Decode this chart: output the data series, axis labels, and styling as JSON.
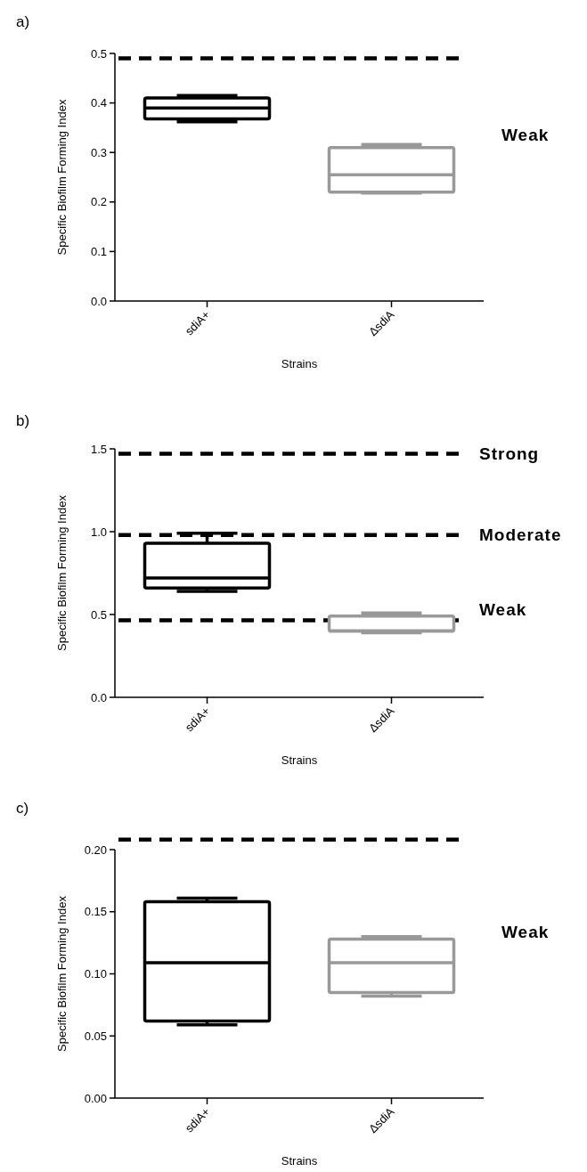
{
  "chart_data": [
    {
      "type": "box",
      "title": "a)",
      "xlabel": "Strains",
      "ylabel": "Specific Biofilm Forming Index",
      "categories": [
        "sdiA+",
        "ΔsdiA"
      ],
      "colors": [
        "#000000",
        "#999999"
      ],
      "boxes": [
        {
          "low": 0.362,
          "q1": 0.368,
          "median": 0.39,
          "q3": 0.41,
          "high": 0.415
        },
        {
          "low": 0.218,
          "q1": 0.22,
          "median": 0.255,
          "q3": 0.31,
          "high": 0.316
        }
      ],
      "ylim": [
        0,
        0.5
      ],
      "yticks": [
        {
          "value": 0,
          "label": "0.0"
        },
        0.1,
        0.2,
        0.3,
        0.4,
        0.5
      ],
      "ref_lines": [
        {
          "axis": "y",
          "value": 0.49,
          "label": null,
          "color": "#000000",
          "line_style": "dashed"
        }
      ],
      "annotations": [
        "Weak"
      ]
    },
    {
      "type": "box",
      "title": "b)",
      "xlabel": "Strains",
      "ylabel": "Specific Biofilm Forming Index",
      "categories": [
        "sdiA+",
        "ΔsdiA"
      ],
      "colors": [
        "#000000",
        "#999999"
      ],
      "boxes": [
        {
          "low": 0.64,
          "q1": 0.66,
          "median": 0.72,
          "q3": 0.93,
          "high": 0.99
        },
        {
          "low": 0.39,
          "q1": 0.4,
          "median": 0.4,
          "q3": 0.49,
          "high": 0.51
        }
      ],
      "ylim": [
        0,
        1.5
      ],
      "yticks": [
        {
          "value": 0,
          "label": "0.0"
        },
        0.5,
        {
          "value": 1,
          "label": "1.0"
        },
        1.5
      ],
      "ref_lines": [
        {
          "axis": "y",
          "value": 1.47,
          "label": "Strong",
          "color": "#000000",
          "line_style": "dashed"
        },
        {
          "axis": "y",
          "value": 0.98,
          "label": "Moderate",
          "color": "#000000",
          "line_style": "dashed"
        },
        {
          "axis": "y",
          "value": 0.465,
          "label": "Weak",
          "color": "#000000",
          "line_style": "dashed"
        }
      ]
    },
    {
      "type": "box",
      "title": "c)",
      "xlabel": "Strains",
      "ylabel": "Specific Biofilm Forming Index",
      "categories": [
        "sdiA+",
        "ΔsdiA"
      ],
      "colors": [
        "#000000",
        "#999999"
      ],
      "boxes": [
        {
          "low": 0.059,
          "q1": 0.062,
          "median": 0.109,
          "q3": 0.158,
          "high": 0.161
        },
        {
          "low": 0.082,
          "q1": 0.085,
          "median": 0.109,
          "q3": 0.128,
          "high": 0.13
        }
      ],
      "ylim": [
        0,
        0.2
      ],
      "yticks": [
        {
          "value": 0,
          "label": "0.00"
        },
        0.05,
        {
          "value": 0.1,
          "label": "0.10"
        },
        0.15,
        {
          "value": 0.2,
          "label": "0.20"
        }
      ],
      "ref_lines": [
        {
          "axis": "y",
          "value": 0.208,
          "label": null,
          "color": "#000000",
          "line_style": "dashed"
        }
      ],
      "annotations": [
        "Weak"
      ]
    }
  ]
}
